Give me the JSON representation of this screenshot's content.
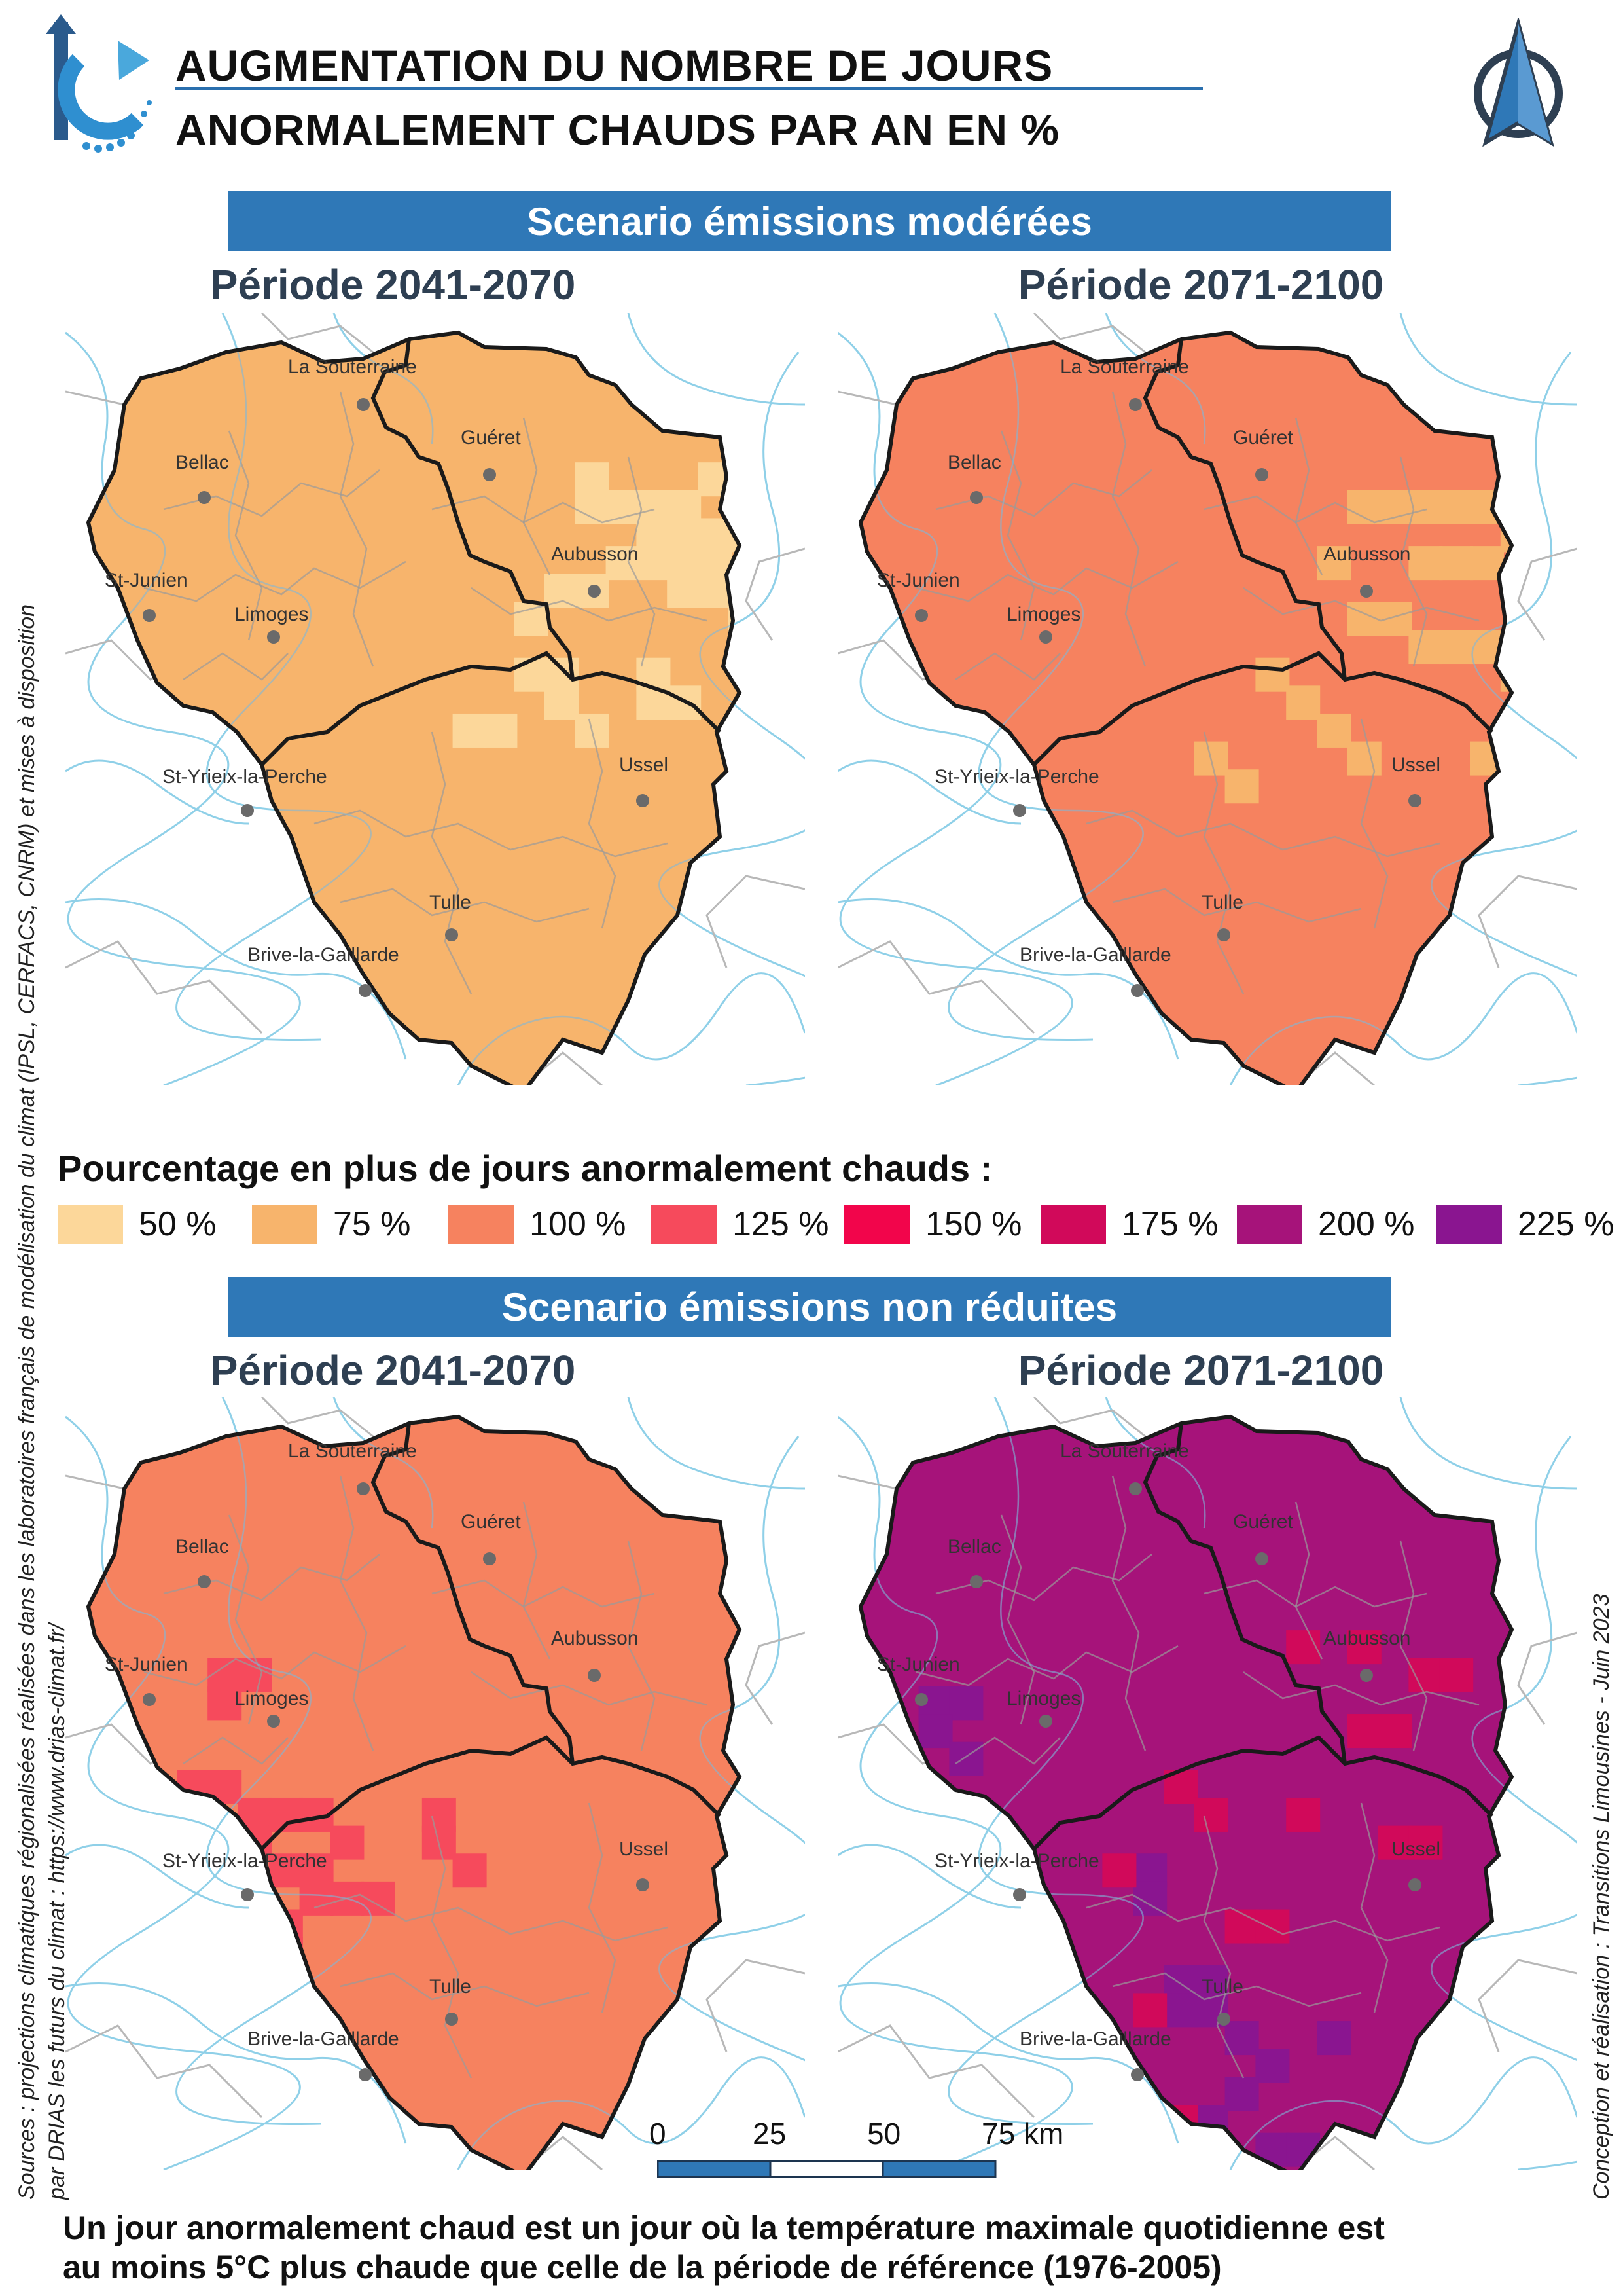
{
  "title": {
    "line1": "AUGMENTATION DU NOMBRE DE JOURS",
    "line2": "ANORMALEMENT CHAUDS PAR AN EN %"
  },
  "colors": {
    "banner": "#2f78b7",
    "period_text": "#2e3f52",
    "c50": "#fcd79a",
    "c75": "#f7b46c",
    "c100": "#f6825f",
    "c125": "#f64a5c",
    "c150": "#f2054b",
    "c175": "#d1095a",
    "c200": "#a6137a",
    "c225": "#8a1590"
  },
  "scenarios": [
    {
      "label": "Scenario émissions modérées",
      "periods": [
        {
          "label": "Période 2041-2070",
          "base_class": "75 %",
          "patch_class": "50 %",
          "hotspot_class": null
        },
        {
          "label": "Période 2071-2100",
          "base_class": "100 %",
          "patch_class": "75 %",
          "hotspot_class": null
        }
      ]
    },
    {
      "label": "Scenario émissions non réduites",
      "periods": [
        {
          "label": "Période 2041-2070",
          "base_class": "100 %",
          "patch_class": "125 %",
          "hotspot_class": null
        },
        {
          "label": "Période 2071-2100",
          "base_class": "200 %",
          "patch_class": "225 %",
          "hotspot_class": "175 %"
        }
      ]
    }
  ],
  "cities": [
    {
      "name": "La Souterraine"
    },
    {
      "name": "Guéret"
    },
    {
      "name": "Bellac"
    },
    {
      "name": "Aubusson"
    },
    {
      "name": "St-Junien"
    },
    {
      "name": "Limoges"
    },
    {
      "name": "St-Yrieix-la-Perche"
    },
    {
      "name": "Ussel"
    },
    {
      "name": "Tulle"
    },
    {
      "name": "Brive-la-Gaillarde"
    }
  ],
  "legend": {
    "title": "Pourcentage en plus de jours anormalement chauds :",
    "items": [
      {
        "label": "50 %",
        "color": "#fcd79a"
      },
      {
        "label": "75 %",
        "color": "#f7b46c"
      },
      {
        "label": "100 %",
        "color": "#f6825f"
      },
      {
        "label": "125 %",
        "color": "#f64a5c"
      },
      {
        "label": "150 %",
        "color": "#f2054b"
      },
      {
        "label": "175 %",
        "color": "#d1095a"
      },
      {
        "label": "200 %",
        "color": "#a6137a"
      },
      {
        "label": "225 %",
        "color": "#8a1590"
      }
    ]
  },
  "scale_bar": {
    "labels": [
      "0",
      "25",
      "50",
      "75 km"
    ]
  },
  "sources": {
    "line1": "Sources : projections climatiques régionalisées réalisées dans les laboratoires français de modélisation du climat (IPSL, CERFACS, CNRM) et mises à disposition",
    "line2": "par DRIAS les futurs du climat : https://www.drias-climat.fr/"
  },
  "credit": "Conception et réalisation : Transitions Limousines - Juin 2023",
  "footer": {
    "line1": "Un jour anormalement chaud est un jour où la température maximale quotidienne est",
    "line2": "au moins 5°C plus chaude que celle de la période de référence (1976-2005)"
  },
  "icons": {
    "logo_left": "circular-arrow-logo-icon",
    "logo_right": "compass-north-arrow-icon"
  }
}
